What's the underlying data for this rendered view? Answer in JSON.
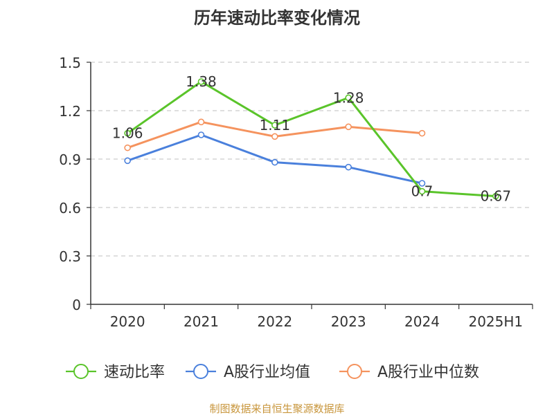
{
  "chart_data": {
    "type": "line",
    "title": "历年速动比率变化情况",
    "categories": [
      "2020",
      "2021",
      "2022",
      "2023",
      "2024",
      "2025H1"
    ],
    "y_ticks": [
      "0",
      "0.3",
      "0.6",
      "0.9",
      "1.2",
      "1.5"
    ],
    "ylim": [
      0,
      1.5
    ],
    "grid": true,
    "legend_position": "bottom",
    "series": [
      {
        "name": "速动比率",
        "color": "#5ac42a",
        "values": [
          1.06,
          1.38,
          1.11,
          1.28,
          0.7,
          0.67
        ],
        "labels": [
          "1.06",
          "1.38",
          "1.11",
          "1.28",
          "0.7",
          "0.67"
        ]
      },
      {
        "name": "A股行业均值",
        "color": "#4a80dc",
        "values": [
          0.89,
          1.05,
          0.88,
          0.85,
          0.75,
          null
        ]
      },
      {
        "name": "A股行业中位数",
        "color": "#f5935e",
        "values": [
          0.97,
          1.13,
          1.04,
          1.1,
          1.06,
          null
        ]
      }
    ]
  },
  "source": "制图数据来自恒生聚源数据库",
  "colors": {
    "title": "#333333",
    "source": "#c8963c",
    "grid": "#cccccc",
    "axis": "#333333"
  }
}
